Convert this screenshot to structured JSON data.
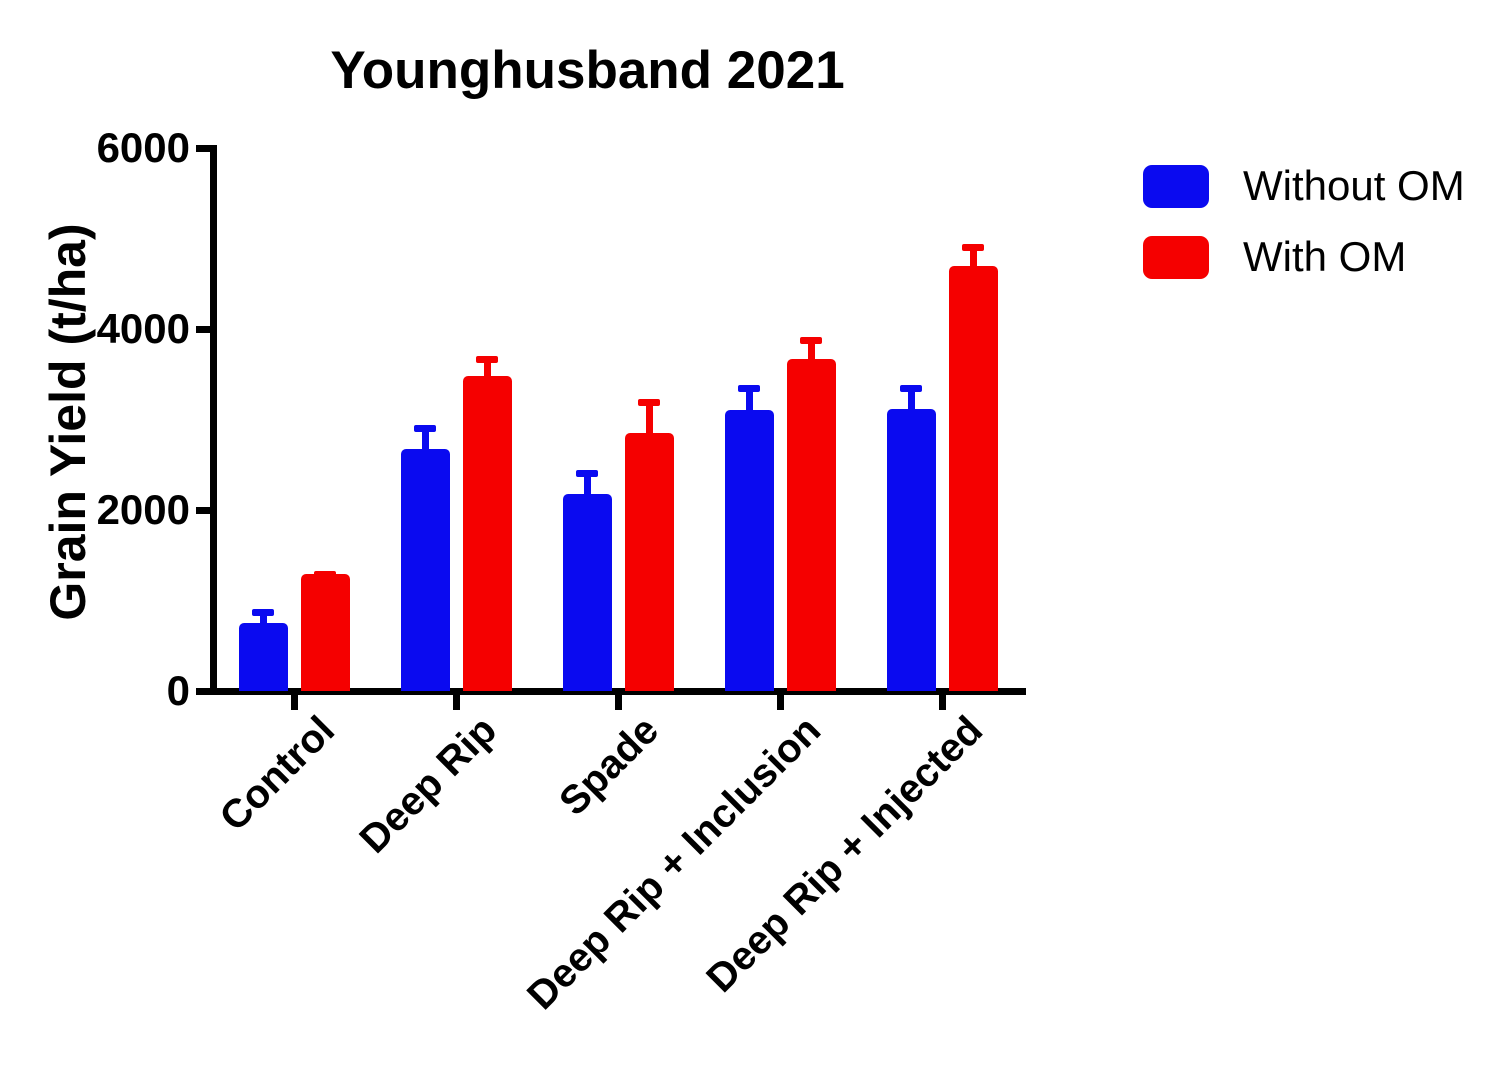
{
  "chart_data": {
    "type": "bar",
    "title": "Younghusband 2021",
    "xlabel": "",
    "ylabel": "Grain Yield (t/ha)",
    "ylim": [
      0,
      6000
    ],
    "yticks": [
      0,
      2000,
      4000,
      6000
    ],
    "grid": false,
    "legend_position": "top-right",
    "error_bars": "SEM upper only",
    "categories": [
      "Control",
      "Deep Rip",
      "Spade",
      "Deep Rip + Inclusion",
      "Deep Rip + Injected"
    ],
    "series": [
      {
        "name": "Without OM",
        "color": "#0a0af0",
        "values": [
          750,
          2670,
          2180,
          3110,
          3120
        ],
        "sem": [
          160,
          270,
          260,
          270,
          260
        ]
      },
      {
        "name": "With OM",
        "color": "#f50000",
        "values": [
          1290,
          3480,
          2850,
          3670,
          4700
        ],
        "sem": [
          40,
          220,
          380,
          240,
          240
        ]
      }
    ]
  },
  "colors": {
    "axis": "#000000",
    "background": "#ffffff",
    "without_om": "#0a0af0",
    "with_om": "#f50000"
  }
}
